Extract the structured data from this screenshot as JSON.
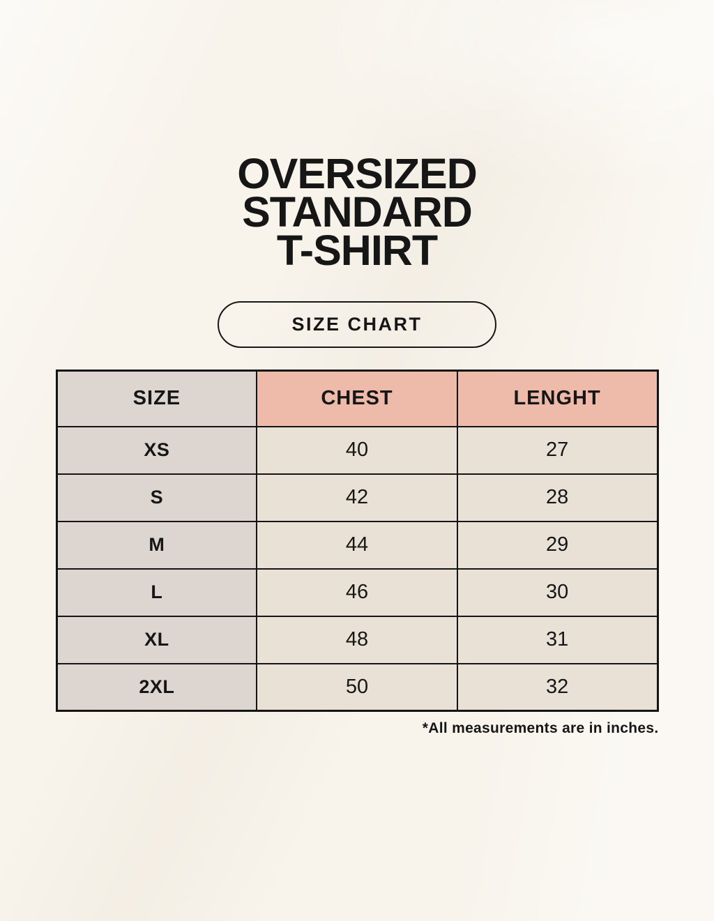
{
  "title": {
    "lines": [
      "OVERSIZED",
      "STANDARD",
      "T-SHIRT"
    ]
  },
  "size_chart_button": {
    "label": "SIZE CHART"
  },
  "table": {
    "columns": [
      "SIZE",
      "CHEST",
      "LENGHT"
    ],
    "rows": [
      {
        "size": "XS",
        "chest": "40",
        "length": "27"
      },
      {
        "size": "S",
        "chest": "42",
        "length": "28"
      },
      {
        "size": "M",
        "chest": "44",
        "length": "29"
      },
      {
        "size": "L",
        "chest": "46",
        "length": "30"
      },
      {
        "size": "XL",
        "chest": "48",
        "length": "31"
      },
      {
        "size": "2XL",
        "chest": "50",
        "length": "32"
      }
    ]
  },
  "footnote": "*All measurements are in inches.",
  "colors": {
    "page_bg": "#f8f4ec",
    "ink": "#161616",
    "table_border": "#141414",
    "size_col_bg": "#ddd6d0",
    "data_cell_bg": "#e9e1d6",
    "accent_header_bg": "#eebbaa"
  }
}
